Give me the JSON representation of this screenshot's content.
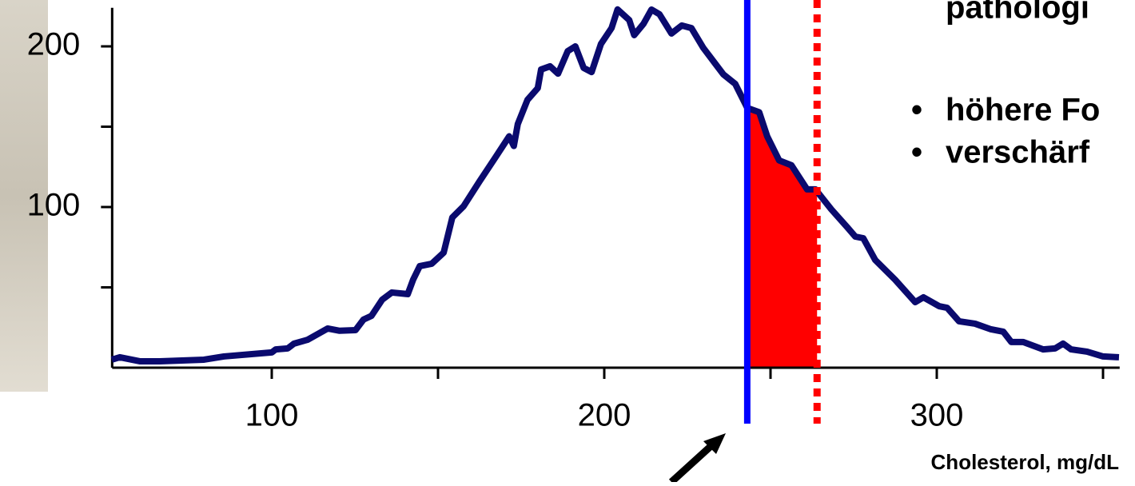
{
  "chart_data": {
    "type": "line",
    "x_label": "Cholesterol, mg/dL",
    "side_text": [
      "pathologi",
      "höhere Fo",
      "verschärf"
    ],
    "xlim": [
      52,
      355
    ],
    "xticks": [
      100,
      200,
      300
    ],
    "xminor_ticks": [
      150,
      250,
      350
    ],
    "ylim": [
      0,
      224
    ],
    "yticks": [
      100,
      200
    ],
    "yminor_ticks": [
      50,
      150
    ],
    "vlines": [
      {
        "value": 243,
        "color": "#0000ff",
        "style": "solid"
      },
      {
        "value": 264,
        "color": "#ff0000",
        "style": "dotted"
      }
    ],
    "shade_color": "#ff0000",
    "series": [
      {
        "color": "#0a0a6e",
        "x": [
          51.9,
          54.3,
          60.3,
          66.3,
          79.6,
          85.6,
          100,
          101.2,
          104.8,
          106.7,
          110.8,
          116.8,
          120.4,
          125.2,
          127.6,
          130,
          133.2,
          136.1,
          140.9,
          142.5,
          144.5,
          148.1,
          151.7,
          154.3,
          157.7,
          162.5,
          167.3,
          171.4,
          172.8,
          174,
          176.9,
          180,
          181,
          183.7,
          186.1,
          189,
          191.3,
          193.8,
          196.2,
          199,
          202.2,
          204,
          207.5,
          209,
          211.8,
          214.2,
          216.6,
          220.2,
          223.3,
          226.2,
          229.8,
          235.8,
          239.4,
          243,
          246.6,
          249,
          252.6,
          256.3,
          261,
          263.5,
          268.3,
          273,
          275.5,
          277.9,
          281.5,
          287.5,
          293.5,
          296,
          300.7,
          303.1,
          306.7,
          311.5,
          316.3,
          320,
          322.4,
          326,
          332,
          335.6,
          338,
          340.4,
          345.2,
          350,
          354.8
        ],
        "values": [
          5,
          6.5,
          4,
          4,
          5,
          7,
          9.5,
          11.4,
          12,
          15,
          17.4,
          24.4,
          23,
          23.4,
          30,
          32.3,
          42.3,
          46.8,
          45.8,
          54.7,
          63.2,
          64.7,
          71.6,
          93.5,
          100.5,
          116,
          131,
          144,
          138,
          151.7,
          166.7,
          174,
          185.6,
          187.6,
          183,
          197,
          200,
          186.6,
          184,
          201.5,
          211.4,
          223,
          216.4,
          207,
          214,
          222.9,
          220,
          208,
          213,
          211.4,
          199,
          182.6,
          176.6,
          161.7,
          159,
          144,
          129,
          126,
          111,
          111,
          98.5,
          87.6,
          81.6,
          80.6,
          67,
          54.7,
          40.8,
          43.8,
          38.3,
          37.3,
          28.9,
          27.4,
          23.9,
          22.4,
          16,
          16,
          11.4,
          12,
          15,
          11.4,
          10,
          7,
          6.5
        ]
      }
    ]
  }
}
